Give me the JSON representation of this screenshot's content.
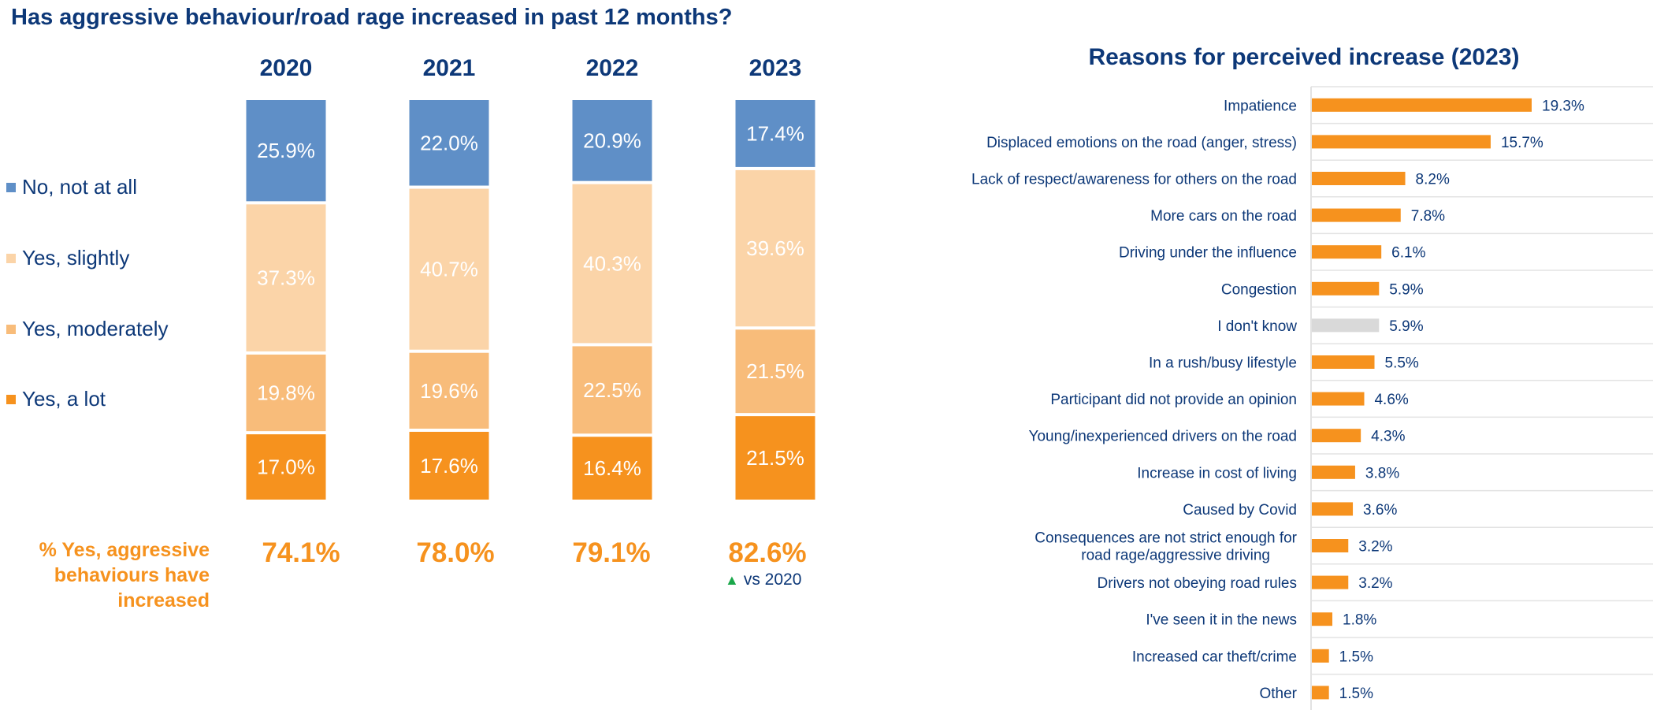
{
  "titles": {
    "left": "Has aggressive behaviour/road rage increased in past 12 months?",
    "right": "Reasons for perceived increase (2023)"
  },
  "colors": {
    "no_not_at_all": "#5f8fc7",
    "yes_slightly": "#fbd4a8",
    "yes_moderately": "#f8bc7a",
    "yes_a_lot": "#f6921e",
    "dont_know": "#d9d9d9",
    "text_navy": "#0d3878",
    "accent_orange": "#f6921e",
    "up_green": "#1aa74a"
  },
  "legend": [
    {
      "label": "No, not at all",
      "color_key": "no_not_at_all"
    },
    {
      "label": "Yes, slightly",
      "color_key": "yes_slightly"
    },
    {
      "label": "Yes, moderately",
      "color_key": "yes_moderately"
    },
    {
      "label": "Yes, a lot",
      "color_key": "yes_a_lot"
    }
  ],
  "summary": {
    "label": "% Yes, aggressive behaviours have increased",
    "totals": [
      "74.1%",
      "78.0%",
      "79.1%",
      "82.6%"
    ],
    "note_icon": "up-triangle-icon",
    "note": "vs 2020"
  },
  "chart_data": [
    {
      "type": "bar",
      "subtype": "stacked-100",
      "title": "Has aggressive behaviour/road rage increased in past 12 months?",
      "categories": [
        "2020",
        "2021",
        "2022",
        "2023"
      ],
      "series": [
        {
          "name": "Yes, a lot",
          "color_key": "yes_a_lot",
          "values": [
            17.0,
            17.6,
            16.4,
            21.5
          ]
        },
        {
          "name": "Yes, moderately",
          "color_key": "yes_moderately",
          "values": [
            19.8,
            19.6,
            22.5,
            21.5
          ]
        },
        {
          "name": "Yes, slightly",
          "color_key": "yes_slightly",
          "values": [
            37.3,
            40.7,
            40.3,
            39.6
          ]
        },
        {
          "name": "No, not at all",
          "color_key": "no_not_at_all",
          "values": [
            25.9,
            22.0,
            20.9,
            17.4
          ]
        }
      ],
      "value_format": "percent-1dp",
      "legend_position": "left",
      "ylim": [
        0,
        100
      ],
      "grid": false
    },
    {
      "type": "bar",
      "orientation": "horizontal",
      "title": "Reasons for perceived increase (2023)",
      "categories": [
        "Impatience",
        "Displaced emotions on the road (anger, stress)",
        "Lack of respect/awareness for others on the road",
        "More cars on the road",
        "Driving under the influence",
        "Congestion",
        "I don't know",
        "In a rush/busy lifestyle",
        "Participant did not provide an opinion",
        "Young/inexperienced drivers on the road",
        "Increase in cost of living",
        "Caused by Covid",
        "Consequences are not strict enough for road rage/aggressive driving",
        "Drivers not obeying road rules",
        "I've seen it in the news",
        "Increased car theft/crime",
        "Other"
      ],
      "values": [
        19.3,
        15.7,
        8.2,
        7.8,
        6.1,
        5.9,
        5.9,
        5.5,
        4.6,
        4.3,
        3.8,
        3.6,
        3.2,
        3.2,
        1.8,
        1.5,
        1.5
      ],
      "bar_color_keys": [
        "yes_a_lot",
        "yes_a_lot",
        "yes_a_lot",
        "yes_a_lot",
        "yes_a_lot",
        "yes_a_lot",
        "dont_know",
        "yes_a_lot",
        "yes_a_lot",
        "yes_a_lot",
        "yes_a_lot",
        "yes_a_lot",
        "yes_a_lot",
        "yes_a_lot",
        "yes_a_lot",
        "yes_a_lot",
        "yes_a_lot"
      ],
      "category_lines": [
        [
          "Impatience"
        ],
        [
          "Displaced emotions on the road (anger, stress)"
        ],
        [
          "Lack of respect/awareness for others on the road"
        ],
        [
          "More cars on the road"
        ],
        [
          "Driving under the influence"
        ],
        [
          "Congestion"
        ],
        [
          "I don't know"
        ],
        [
          "In a rush/busy lifestyle"
        ],
        [
          "Participant did not provide an opinion"
        ],
        [
          "Young/inexperienced drivers on the road"
        ],
        [
          "Increase in cost of living"
        ],
        [
          "Caused by Covid"
        ],
        [
          "Consequences are not strict enough for",
          "road rage/aggressive driving"
        ],
        [
          "Drivers not obeying road rules"
        ],
        [
          "I've seen it in the news"
        ],
        [
          "Increased car theft/crime"
        ],
        [
          "Other"
        ]
      ],
      "value_format": "percent-1dp",
      "xlim": [
        0,
        42
      ],
      "grid": "horizontal-separators"
    }
  ]
}
